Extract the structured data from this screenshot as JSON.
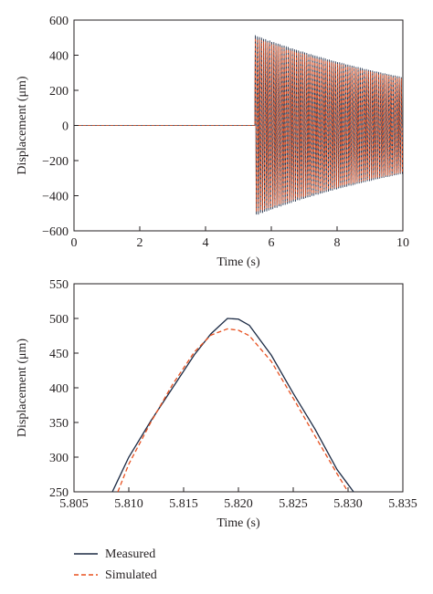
{
  "colors": {
    "measured": "#1b2a44",
    "simulated": "#e8501f",
    "axis": "#231f20"
  },
  "legend": {
    "placement": "bottom-left",
    "entries": [
      "Measured",
      "Simulated"
    ]
  },
  "chart_data": [
    {
      "type": "line",
      "xlabel": "Time (s)",
      "ylabel": "Displacement (μm)",
      "xlim": [
        0,
        10
      ],
      "ylim": [
        -600,
        600
      ],
      "xticks": [
        0,
        2,
        4,
        6,
        8,
        10
      ],
      "yticks": [
        -600,
        -400,
        -200,
        0,
        200,
        400,
        600
      ],
      "xtick_labels": [
        "0",
        "2",
        "4",
        "6",
        "8",
        "10"
      ],
      "ytick_labels": [
        "−600",
        "−400",
        "−200",
        "0",
        "200",
        "400",
        "600"
      ],
      "grid": false,
      "series": [
        {
          "name": "Measured",
          "style": "solid",
          "segments": [
            {
              "type": "flat",
              "x": [
                0,
                5.5
              ],
              "y": 0
            },
            {
              "type": "decaying-oscillation",
              "x": [
                5.5,
                10
              ],
              "envelope_start": 515,
              "envelope_end": 275,
              "frequency_hz": 16
            }
          ]
        },
        {
          "name": "Simulated",
          "style": "dashed",
          "segments": [
            {
              "type": "flat",
              "x": [
                0,
                5.5
              ],
              "y": 0
            },
            {
              "type": "decaying-oscillation",
              "x": [
                5.5,
                10
              ],
              "envelope_start": 500,
              "envelope_end": 268,
              "frequency_hz": 16
            }
          ]
        }
      ]
    },
    {
      "type": "line",
      "xlabel": "Time (s)",
      "ylabel": "Displacement (μm)",
      "xlim": [
        5.805,
        5.835
      ],
      "ylim": [
        250,
        550
      ],
      "xticks": [
        5.805,
        5.81,
        5.815,
        5.82,
        5.825,
        5.83,
        5.835
      ],
      "yticks": [
        250,
        300,
        350,
        400,
        450,
        500,
        550
      ],
      "xtick_labels": [
        "5.805",
        "5.810",
        "5.815",
        "5.820",
        "5.825",
        "5.830",
        "5.835"
      ],
      "ytick_labels": [
        "250",
        "300",
        "350",
        "400",
        "450",
        "500",
        "550"
      ],
      "grid": false,
      "series": [
        {
          "name": "Measured",
          "style": "solid",
          "x": [
            5.8085,
            5.81,
            5.812,
            5.814,
            5.816,
            5.8175,
            5.819,
            5.82,
            5.821,
            5.823,
            5.825,
            5.827,
            5.829,
            5.8305
          ],
          "y": [
            250,
            300,
            352,
            400,
            448,
            478,
            500,
            499,
            490,
            447,
            392,
            340,
            282,
            250
          ]
        },
        {
          "name": "Simulated",
          "style": "dashed",
          "x": [
            5.809,
            5.81,
            5.812,
            5.814,
            5.816,
            5.8175,
            5.819,
            5.82,
            5.821,
            5.823,
            5.825,
            5.827,
            5.829,
            5.83
          ],
          "y": [
            250,
            290,
            350,
            405,
            452,
            476,
            485,
            483,
            475,
            438,
            385,
            330,
            276,
            250
          ]
        }
      ]
    }
  ]
}
